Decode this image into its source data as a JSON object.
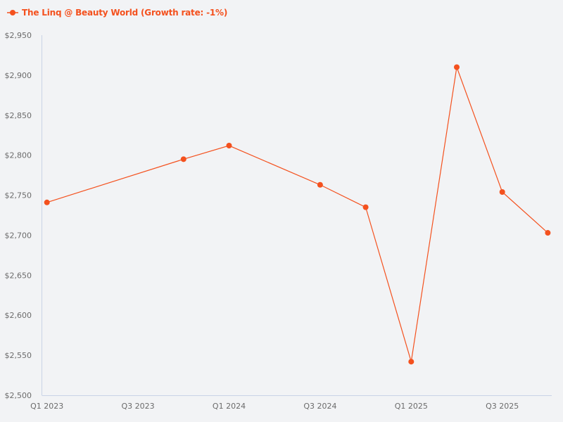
{
  "chart_data": {
    "type": "line",
    "title": "",
    "xlabel": "",
    "ylabel": "",
    "ylim": [
      2500,
      2950
    ],
    "y_ticks": [
      "$2,500",
      "$2,550",
      "$2,600",
      "$2,650",
      "$2,700",
      "$2,750",
      "$2,800",
      "$2,850",
      "$2,900",
      "$2,950"
    ],
    "y_tick_values": [
      2500,
      2550,
      2600,
      2650,
      2700,
      2750,
      2800,
      2850,
      2900,
      2950
    ],
    "x_ticks": [
      "Q1 2023",
      "Q3 2023",
      "Q1 2024",
      "Q3 2024",
      "Q1 2025",
      "Q3 2025"
    ],
    "x_tick_quarters": [
      0,
      2,
      4,
      6,
      8,
      10
    ],
    "grid": false,
    "legend_position": "top-left",
    "series": [
      {
        "name": "The Linq @ Beauty World (Growth rate: -1%)",
        "color": "#f4511e",
        "x": [
          "Q1 2023",
          "Q4 2023",
          "Q1 2024",
          "Q3 2024",
          "Q4 2024",
          "Q1 2025",
          "Q2 2025",
          "Q3 2025",
          "Q4 2025"
        ],
        "x_quarter_index": [
          0,
          3,
          4,
          6,
          7,
          8,
          9,
          10,
          11
        ],
        "values": [
          2741,
          2795,
          2812,
          2763,
          2735,
          2542,
          2910,
          2754,
          2703
        ]
      }
    ]
  },
  "legend": {
    "label": "The Linq @ Beauty World (Growth rate: -1%)",
    "color": "#f4511e"
  },
  "colors": {
    "background": "#f2f3f5",
    "axis": "#c9d3e6",
    "tick_text": "#6b6b6b"
  }
}
